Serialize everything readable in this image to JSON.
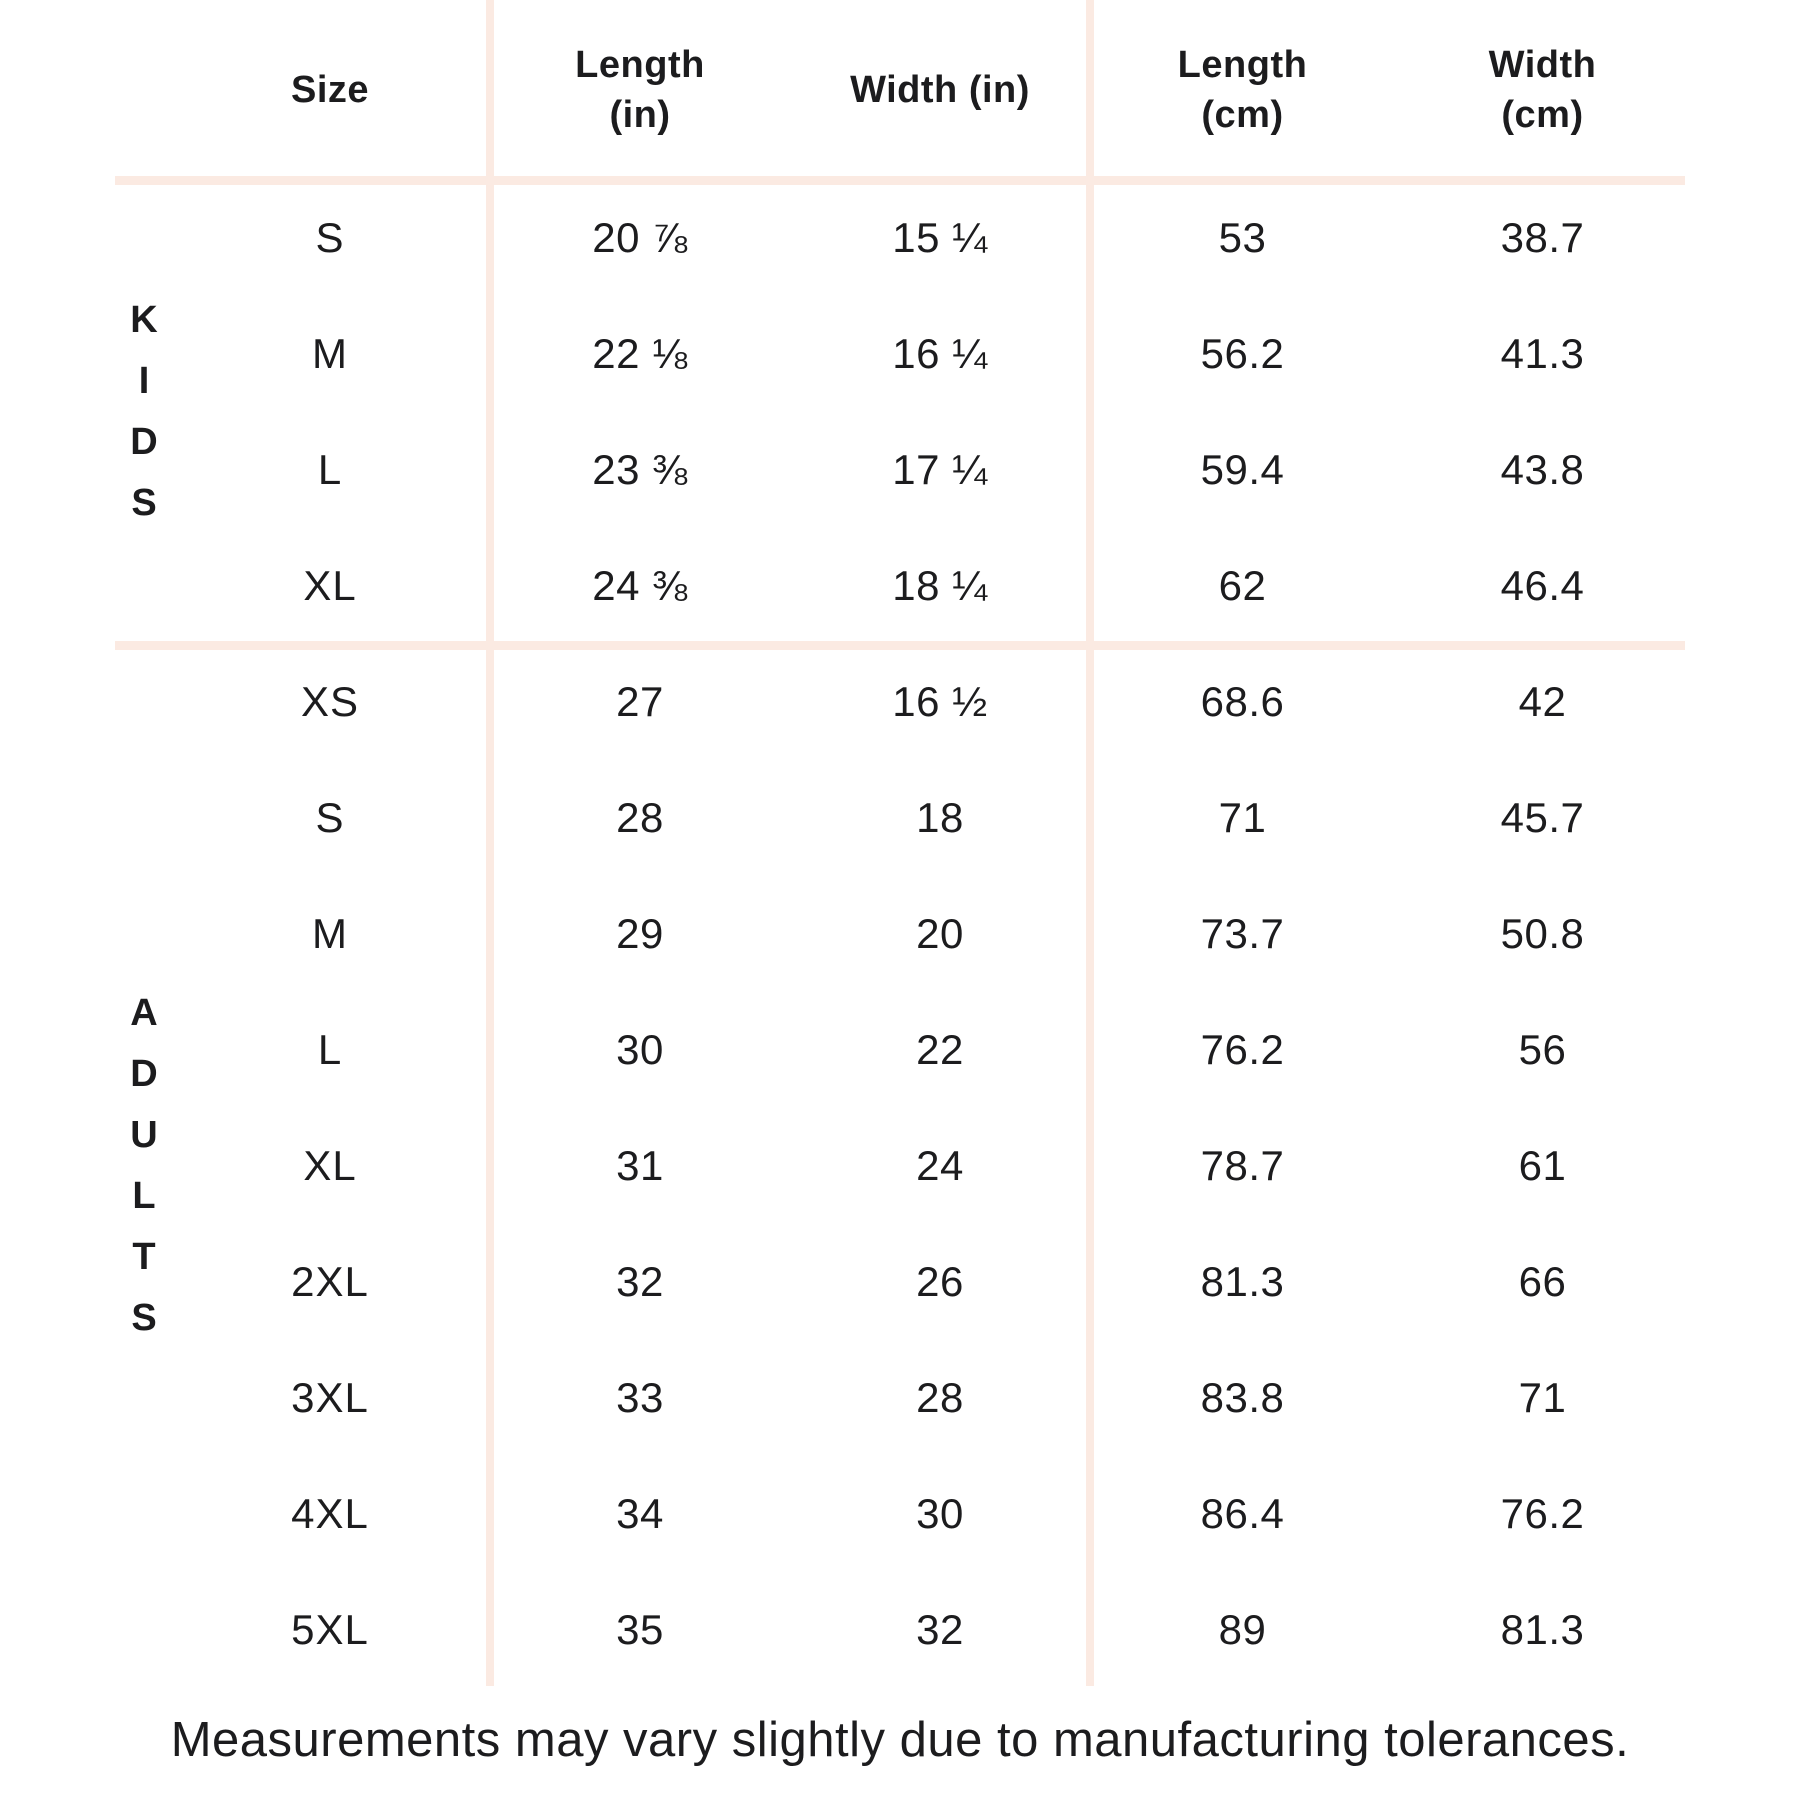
{
  "chart_data": {
    "type": "table",
    "columns": [
      "Size",
      "Length (in)",
      "Width (in)",
      "Length (cm)",
      "Width (cm)"
    ],
    "header_lines": [
      [
        "Size"
      ],
      [
        "Length",
        "(in)"
      ],
      [
        "Width (in)"
      ],
      [
        "Length",
        "(cm)"
      ],
      [
        "Width",
        "(cm)"
      ]
    ],
    "groups": [
      {
        "label": "KIDS",
        "rows": [
          {
            "size": "S",
            "values": [
              "20 ⅞",
              "15 ¼",
              "53",
              "38.7"
            ]
          },
          {
            "size": "M",
            "values": [
              "22 ⅛",
              "16 ¼",
              "56.2",
              "41.3"
            ]
          },
          {
            "size": "L",
            "values": [
              "23 ⅜",
              "17 ¼",
              "59.4",
              "43.8"
            ]
          },
          {
            "size": "XL",
            "values": [
              "24 ⅜",
              "18 ¼",
              "62",
              "46.4"
            ]
          }
        ]
      },
      {
        "label": "ADULTS",
        "rows": [
          {
            "size": "XS",
            "values": [
              "27",
              "16 ½",
              "68.6",
              "42"
            ]
          },
          {
            "size": "S",
            "values": [
              "28",
              "18",
              "71",
              "45.7"
            ]
          },
          {
            "size": "M",
            "values": [
              "29",
              "20",
              "73.7",
              "50.8"
            ]
          },
          {
            "size": "L",
            "values": [
              "30",
              "22",
              "76.2",
              "56"
            ]
          },
          {
            "size": "XL",
            "values": [
              "31",
              "24",
              "78.7",
              "61"
            ]
          },
          {
            "size": "2XL",
            "values": [
              "32",
              "26",
              "81.3",
              "66"
            ]
          },
          {
            "size": "3XL",
            "values": [
              "33",
              "28",
              "83.8",
              "71"
            ]
          },
          {
            "size": "4XL",
            "values": [
              "34",
              "30",
              "86.4",
              "76.2"
            ]
          },
          {
            "size": "5XL",
            "values": [
              "35",
              "32",
              "89",
              "81.3"
            ]
          }
        ]
      }
    ],
    "layout": {
      "grid": "off",
      "group_label_orientation": "vertical"
    }
  },
  "footer": {
    "note": "Measurements may vary slightly due to manufacturing tolerances."
  },
  "colors": {
    "divider": "#fbeae2",
    "text": "#1c1c1e",
    "background": "#ffffff"
  }
}
